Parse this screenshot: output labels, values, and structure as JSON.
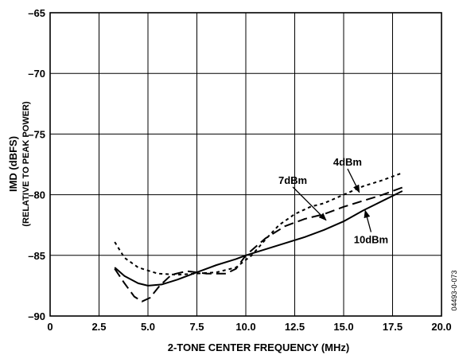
{
  "chart_data": {
    "type": "line",
    "title": "",
    "xlabel": "2-TONE CENTER FREQUENCY (MHz)",
    "ylabel": "IMD (dBFS)",
    "ylabel_sub": "(RELATIVE TO PEAK POWER)",
    "xlim": [
      0,
      20
    ],
    "ylim": [
      -90,
      -65
    ],
    "x_ticks": [
      0,
      2.5,
      5,
      7.5,
      10,
      12.5,
      15,
      17.5,
      20
    ],
    "x_tick_labels": [
      "0",
      "2.5",
      "5.0",
      "7.5",
      "10.0",
      "12.5",
      "15.0",
      "17.5",
      "20.0"
    ],
    "y_ticks": [
      -90,
      -85,
      -80,
      -75,
      -70,
      -65
    ],
    "y_tick_labels": [
      "–90",
      "–85",
      "–80",
      "–75",
      "–70",
      "–65"
    ],
    "grid": true,
    "series": [
      {
        "name": "4dBm",
        "style": "short-dash",
        "x": [
          3.3,
          3.8,
          4.5,
          5.5,
          6.5,
          7.5,
          8.5,
          9.5,
          10.3,
          11.0,
          11.7,
          12.5,
          13.3,
          14.0,
          15.0,
          16.0,
          17.0,
          18.0
        ],
        "y": [
          -83.9,
          -85.2,
          -86.0,
          -86.5,
          -86.6,
          -86.5,
          -86.4,
          -86.0,
          -85.0,
          -83.7,
          -82.5,
          -81.6,
          -81.0,
          -80.7,
          -80.0,
          -79.3,
          -78.8,
          -78.2
        ]
      },
      {
        "name": "7dBm",
        "style": "long-dash",
        "x": [
          3.3,
          3.8,
          4.3,
          4.7,
          5.1,
          5.6,
          6.2,
          7.0,
          8.0,
          9.0,
          9.5,
          10.0,
          11.0,
          12.0,
          13.0,
          14.0,
          15.0,
          16.0,
          17.0,
          18.0
        ],
        "y": [
          -86.1,
          -87.3,
          -88.4,
          -88.8,
          -88.5,
          -87.5,
          -86.6,
          -86.3,
          -86.5,
          -86.5,
          -86.1,
          -85.0,
          -83.6,
          -82.6,
          -82.0,
          -81.6,
          -81.0,
          -80.5,
          -80.0,
          -79.4
        ]
      },
      {
        "name": "10dBm",
        "style": "solid",
        "x": [
          3.3,
          3.8,
          4.5,
          5.0,
          5.7,
          6.5,
          7.5,
          8.5,
          9.5,
          10.0,
          11.0,
          12.0,
          13.0,
          14.0,
          15.0,
          16.0,
          17.0,
          18.0
        ],
        "y": [
          -86.0,
          -86.7,
          -87.3,
          -87.5,
          -87.4,
          -87.0,
          -86.4,
          -85.8,
          -85.3,
          -85.0,
          -84.5,
          -84.0,
          -83.5,
          -82.9,
          -82.2,
          -81.3,
          -80.5,
          -79.7
        ]
      }
    ],
    "annotations": [
      {
        "text": "4dBm",
        "x": 15.2,
        "y": -77.6,
        "arrow_to": [
          15.8,
          -79.8
        ]
      },
      {
        "text": "7dBm",
        "x": 12.4,
        "y": -79.1,
        "arrow_to": [
          14.1,
          -82.1
        ]
      },
      {
        "text": "10dBm",
        "x": 16.4,
        "y": -84.0,
        "arrow_to": [
          16.1,
          -81.3
        ]
      }
    ],
    "figure_id": "04493-0-073"
  }
}
